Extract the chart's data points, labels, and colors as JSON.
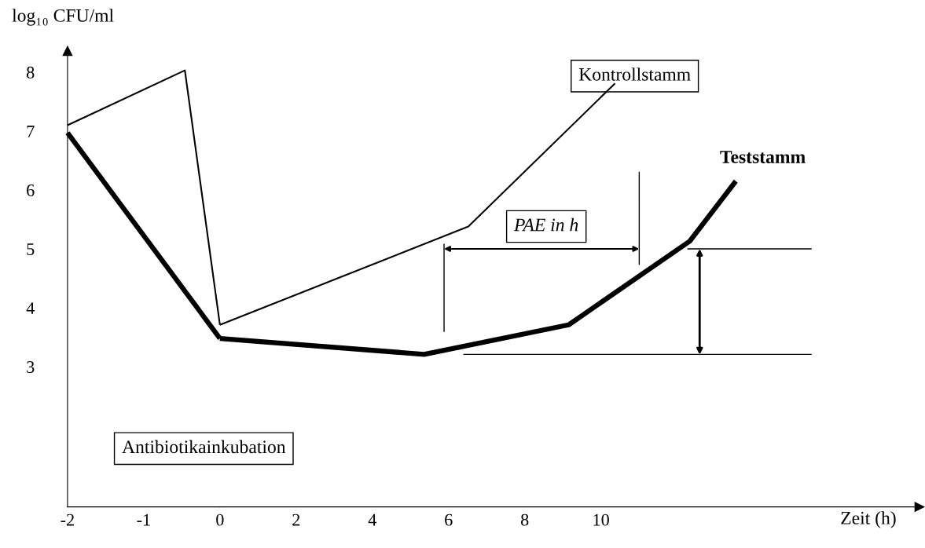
{
  "chart_data": [
    {
      "type": "line",
      "ylabel": "log₁₀ CFU/ml",
      "xlim": [
        -2,
        0
      ],
      "ylim": [
        0.62,
        8.36
      ],
      "xticks": [
        -2,
        -1
      ],
      "yticks": [
        3,
        4,
        5,
        6,
        7,
        8
      ],
      "series": [
        {
          "color": "#000000",
          "x": [
            -2,
            -0.46,
            0
          ],
          "values": [
            7.1,
            8.03,
            3.71
          ]
        },
        {
          "color": "#000000",
          "x": [
            -2,
            0
          ],
          "values": [
            6.97,
            3.48
          ]
        }
      ],
      "annotations": [
        "Antibiotikainkubation"
      ],
      "grid": false,
      "legend": false,
      "marker": "none",
      "line_style": "solid"
    },
    {
      "type": "line",
      "xlabel": "Zeit (h)",
      "xlim": [
        0,
        18.36
      ],
      "ylim": [
        0.62,
        8
      ],
      "xticks": [
        0,
        2,
        4,
        6,
        8,
        10
      ],
      "yticks": [
        3,
        4,
        5,
        6,
        7,
        8
      ],
      "tick_labels": "x",
      "series": [
        {
          "name": "Kontrollstamm",
          "color": "#000000",
          "x": [
            0,
            6.52,
            10.37
          ],
          "values": [
            3.71,
            5.38,
            7.81
          ]
        },
        {
          "name": "Teststamm",
          "color": "#000000",
          "x": [
            0,
            5.36,
            9.15,
            12.33,
            13.54
          ],
          "values": [
            3.48,
            3.21,
            3.71,
            5.13,
            6.15
          ]
        },
        {
          "color": "#000000",
          "x": [
            6.39,
            15.53
          ],
          "values": [
            3.21,
            3.21
          ]
        },
        {
          "color": "#000000",
          "x": [
            12.27,
            15.53
          ],
          "values": [
            5.0,
            5.0
          ]
        }
      ],
      "annotations": [
        "PAE in h"
      ],
      "grid": false,
      "legend": false,
      "marker": "none",
      "line_style": "solid"
    }
  ]
}
